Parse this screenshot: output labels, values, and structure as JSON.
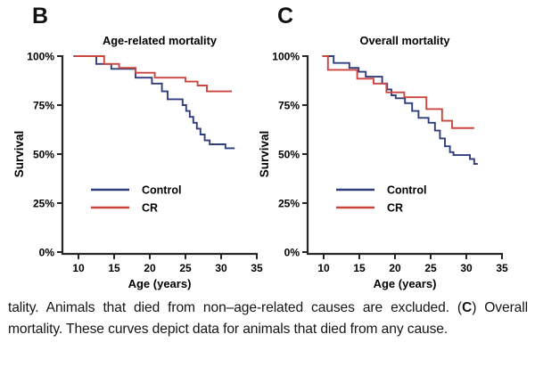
{
  "figure": {
    "caption": {
      "segments": [
        {
          "text": "tality. Animals that died from non–age-related causes are excluded. (",
          "bold": false
        },
        {
          "text": "C",
          "bold": true
        },
        {
          "text": ") Overall mortality. These curves depict data for animals that died from any cause.",
          "bold": false
        }
      ]
    }
  },
  "colors": {
    "control": "#303d7d",
    "cr": "#cc443e",
    "axis": "#262626",
    "text": "#000000"
  },
  "chart_data": [
    {
      "type": "line",
      "subtype": "step-survival",
      "panel_label": "B",
      "title": "Age-related mortality",
      "xlabel": "Age (years)",
      "ylabel": "Survival",
      "xlim": [
        7.8,
        35
      ],
      "ylim": [
        0,
        100
      ],
      "x_ticks": [
        10,
        15,
        20,
        25,
        30,
        35
      ],
      "y_ticks": [
        {
          "pct": 0,
          "label": "0%"
        },
        {
          "pct": 25,
          "label": "25%"
        },
        {
          "pct": 50,
          "label": "50%"
        },
        {
          "pct": 75,
          "label": "75%"
        },
        {
          "pct": 100,
          "label": "100%"
        }
      ],
      "grid": false,
      "legend_position": "inside-lower-left",
      "legend": [
        {
          "label": "Control",
          "color_key": "control"
        },
        {
          "label": "CR",
          "color_key": "cr"
        }
      ],
      "series": [
        {
          "name": "Control",
          "color_key": "control",
          "step_points": [
            [
              9.3,
              100
            ],
            [
              12.5,
              96
            ],
            [
              14.6,
              93.5
            ],
            [
              18.0,
              89
            ],
            [
              20.3,
              86
            ],
            [
              21.7,
              82
            ],
            [
              22.5,
              78
            ],
            [
              24.6,
              75
            ],
            [
              25.1,
              72
            ],
            [
              25.6,
              69
            ],
            [
              26.1,
              66
            ],
            [
              26.6,
              63
            ],
            [
              27.1,
              60
            ],
            [
              27.7,
              57
            ],
            [
              28.4,
              55
            ],
            [
              30.6,
              53
            ]
          ],
          "end_age": 31.9
        },
        {
          "name": "CR",
          "color_key": "cr",
          "step_points": [
            [
              9.4,
              100
            ],
            [
              13.6,
              96
            ],
            [
              15.7,
              94
            ],
            [
              18.0,
              91.5
            ],
            [
              20.7,
              89
            ],
            [
              25.0,
              87
            ],
            [
              26.7,
              85
            ],
            [
              28.0,
              82
            ]
          ],
          "end_age": 31.5
        }
      ]
    },
    {
      "type": "line",
      "subtype": "step-survival",
      "panel_label": "C",
      "title": "Overall mortality",
      "xlabel": "Age (years)",
      "ylabel": "Survival",
      "xlim": [
        7.8,
        35
      ],
      "ylim": [
        0,
        100
      ],
      "x_ticks": [
        10,
        15,
        20,
        25,
        30,
        35
      ],
      "y_ticks": [
        {
          "pct": 0,
          "label": "0%"
        },
        {
          "pct": 25,
          "label": "25%"
        },
        {
          "pct": 50,
          "label": "50%"
        },
        {
          "pct": 75,
          "label": "75%"
        },
        {
          "pct": 100,
          "label": "100%"
        }
      ],
      "grid": false,
      "legend_position": "inside-lower-left",
      "legend": [
        {
          "label": "Control",
          "color_key": "control"
        },
        {
          "label": "CR",
          "color_key": "cr"
        }
      ],
      "series": [
        {
          "name": "Control",
          "color_key": "control",
          "step_points": [
            [
              9.9,
              100
            ],
            [
              11.4,
              96.5
            ],
            [
              13.6,
              94
            ],
            [
              14.9,
              92
            ],
            [
              15.9,
              89.5
            ],
            [
              18.2,
              86
            ],
            [
              18.9,
              83
            ],
            [
              19.5,
              80
            ],
            [
              20.1,
              78.5
            ],
            [
              21.4,
              76
            ],
            [
              22.4,
              72
            ],
            [
              23.3,
              68.5
            ],
            [
              24.7,
              66
            ],
            [
              25.6,
              62
            ],
            [
              26.3,
              58
            ],
            [
              27.0,
              54
            ],
            [
              27.7,
              51
            ],
            [
              28.2,
              49.5
            ],
            [
              30.5,
              47.5
            ],
            [
              31.1,
              45
            ]
          ],
          "end_age": 31.6
        },
        {
          "name": "CR",
          "color_key": "cr",
          "step_points": [
            [
              9.8,
              100
            ],
            [
              10.6,
              93
            ],
            [
              14.7,
              88.5
            ],
            [
              17.0,
              86
            ],
            [
              18.8,
              81.5
            ],
            [
              21.3,
              79
            ],
            [
              24.4,
              73
            ],
            [
              26.6,
              67
            ],
            [
              28.0,
              63.3
            ]
          ],
          "end_age": 31.1
        }
      ]
    }
  ]
}
